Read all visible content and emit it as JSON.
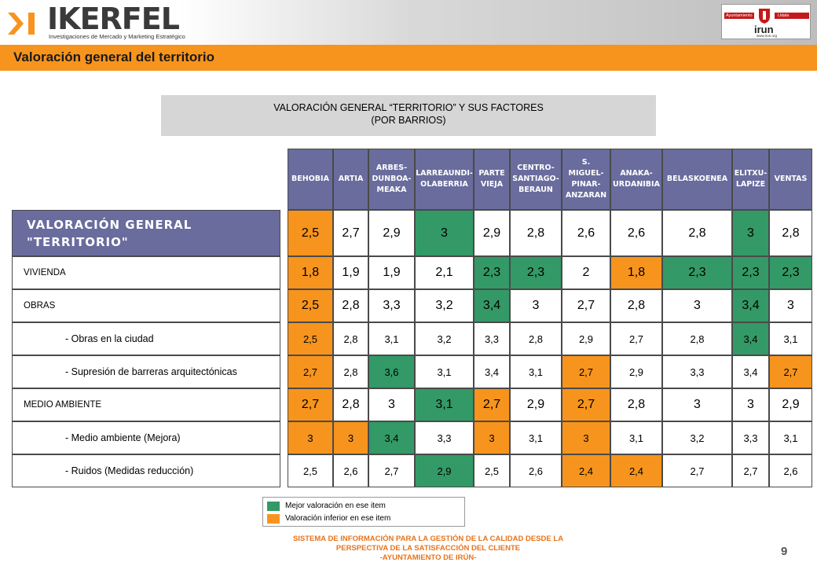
{
  "header": {
    "brand": "IKERFEL",
    "brand_tagline": "Investigaciones de Mercado y Marketing Estratégico",
    "partner": {
      "left_label": "Ayuntamiento",
      "right_label": "Udala",
      "name": "irun",
      "url": "www.irun.org"
    }
  },
  "page_title": "Valoración general del territorio",
  "subtitle": {
    "line1": "VALORACIÓN GENERAL “TERRITORIO” Y SUS FACTORES",
    "line2": "(POR BARRIOS)"
  },
  "table": {
    "columns": [
      [
        "BEHOBIA"
      ],
      [
        "ARTIA"
      ],
      [
        "ARBES-",
        "DUNBOA-",
        "MEAKA"
      ],
      [
        "LARREAUNDI-",
        "OLABERRIA"
      ],
      [
        "PARTE",
        "VIEJA"
      ],
      [
        "CENTRO-",
        "SANTIAGO-",
        "BERAUN"
      ],
      [
        "S. MIGUEL-",
        "PINAR-",
        "ANZARAN"
      ],
      [
        "ANAKA-",
        "URDANIBIA"
      ],
      [
        "BELASKOENEA"
      ],
      [
        "ELITXU-",
        "LAPIZE"
      ],
      [
        "VENTAS"
      ]
    ],
    "rows": [
      {
        "label": [
          "VALORACIÓN GENERAL",
          "\"TERRITORIO\""
        ],
        "kind": "main",
        "values": [
          "2,5",
          "2,7",
          "2,9",
          "3",
          "2,9",
          "2,8",
          "2,6",
          "2,6",
          "2,8",
          "3",
          "2,8"
        ],
        "marks": [
          "worst",
          "",
          "",
          "best",
          "",
          "",
          "",
          "",
          "",
          "best",
          ""
        ]
      },
      {
        "label": [
          "VIVIENDA"
        ],
        "kind": "group",
        "values": [
          "1,8",
          "1,9",
          "1,9",
          "2,1",
          "2,3",
          "2,3",
          "2",
          "1,8",
          "2,3",
          "2,3",
          "2,3"
        ],
        "marks": [
          "worst",
          "",
          "",
          "",
          "best",
          "best",
          "",
          "worst",
          "best",
          "best",
          "best"
        ]
      },
      {
        "label": [
          "OBRAS"
        ],
        "kind": "group",
        "values": [
          "2,5",
          "2,8",
          "3,3",
          "3,2",
          "3,4",
          "3",
          "2,7",
          "2,8",
          "3",
          "3,4",
          "3"
        ],
        "marks": [
          "worst",
          "",
          "",
          "",
          "best",
          "",
          "",
          "",
          "",
          "best",
          ""
        ]
      },
      {
        "label": [
          "- Obras en la ciudad"
        ],
        "kind": "sub",
        "values": [
          "2,5",
          "2,8",
          "3,1",
          "3,2",
          "3,3",
          "2,8",
          "2,9",
          "2,7",
          "2,8",
          "3,4",
          "3,1"
        ],
        "marks": [
          "worst",
          "",
          "",
          "",
          "",
          "",
          "",
          "",
          "",
          "best",
          ""
        ]
      },
      {
        "label": [
          "- Supresión de barreras arquitectónicas"
        ],
        "kind": "sub",
        "values": [
          "2,7",
          "2,8",
          "3,6",
          "3,1",
          "3,4",
          "3,1",
          "2,7",
          "2,9",
          "3,3",
          "3,4",
          "2,7"
        ],
        "marks": [
          "worst",
          "",
          "best",
          "",
          "",
          "",
          "worst",
          "",
          "",
          "",
          "worst"
        ]
      },
      {
        "label": [
          "MEDIO AMBIENTE"
        ],
        "kind": "group",
        "values": [
          "2,7",
          "2,8",
          "3",
          "3,1",
          "2,7",
          "2,9",
          "2,7",
          "2,8",
          "3",
          "3",
          "2,9"
        ],
        "marks": [
          "worst",
          "",
          "",
          "best",
          "worst",
          "",
          "worst",
          "",
          "",
          "",
          ""
        ]
      },
      {
        "label": [
          "- Medio ambiente (Mejora)"
        ],
        "kind": "sub",
        "values": [
          "3",
          "3",
          "3,4",
          "3,3",
          "3",
          "3,1",
          "3",
          "3,1",
          "3,2",
          "3,3",
          "3,1"
        ],
        "marks": [
          "worst",
          "worst",
          "best",
          "",
          "worst",
          "",
          "worst",
          "",
          "",
          "",
          ""
        ]
      },
      {
        "label": [
          "- Ruidos (Medidas reducción)"
        ],
        "kind": "sub",
        "values": [
          "2,5",
          "2,6",
          "2,7",
          "2,9",
          "2,5",
          "2,6",
          "2,4",
          "2,4",
          "2,7",
          "2,7",
          "2,6"
        ],
        "marks": [
          "",
          "",
          "",
          "best",
          "",
          "",
          "worst",
          "worst",
          "",
          "",
          ""
        ]
      }
    ]
  },
  "legend": {
    "best_label": "Mejor valoración en ese item",
    "worst_label": "Valoración inferior en ese item",
    "best_color": "#339966",
    "worst_color": "#f7941d"
  },
  "footer": {
    "line1": "SISTEMA DE INFORMACIÓN PARA LA GESTIÓN DE LA CALIDAD DESDE LA",
    "line2": "PERSPECTIVA DE LA SATISFACCIÓN DEL CLIENTE",
    "line3": "-AYUNTAMIENTO DE IRÚN-"
  },
  "page_number": "9"
}
